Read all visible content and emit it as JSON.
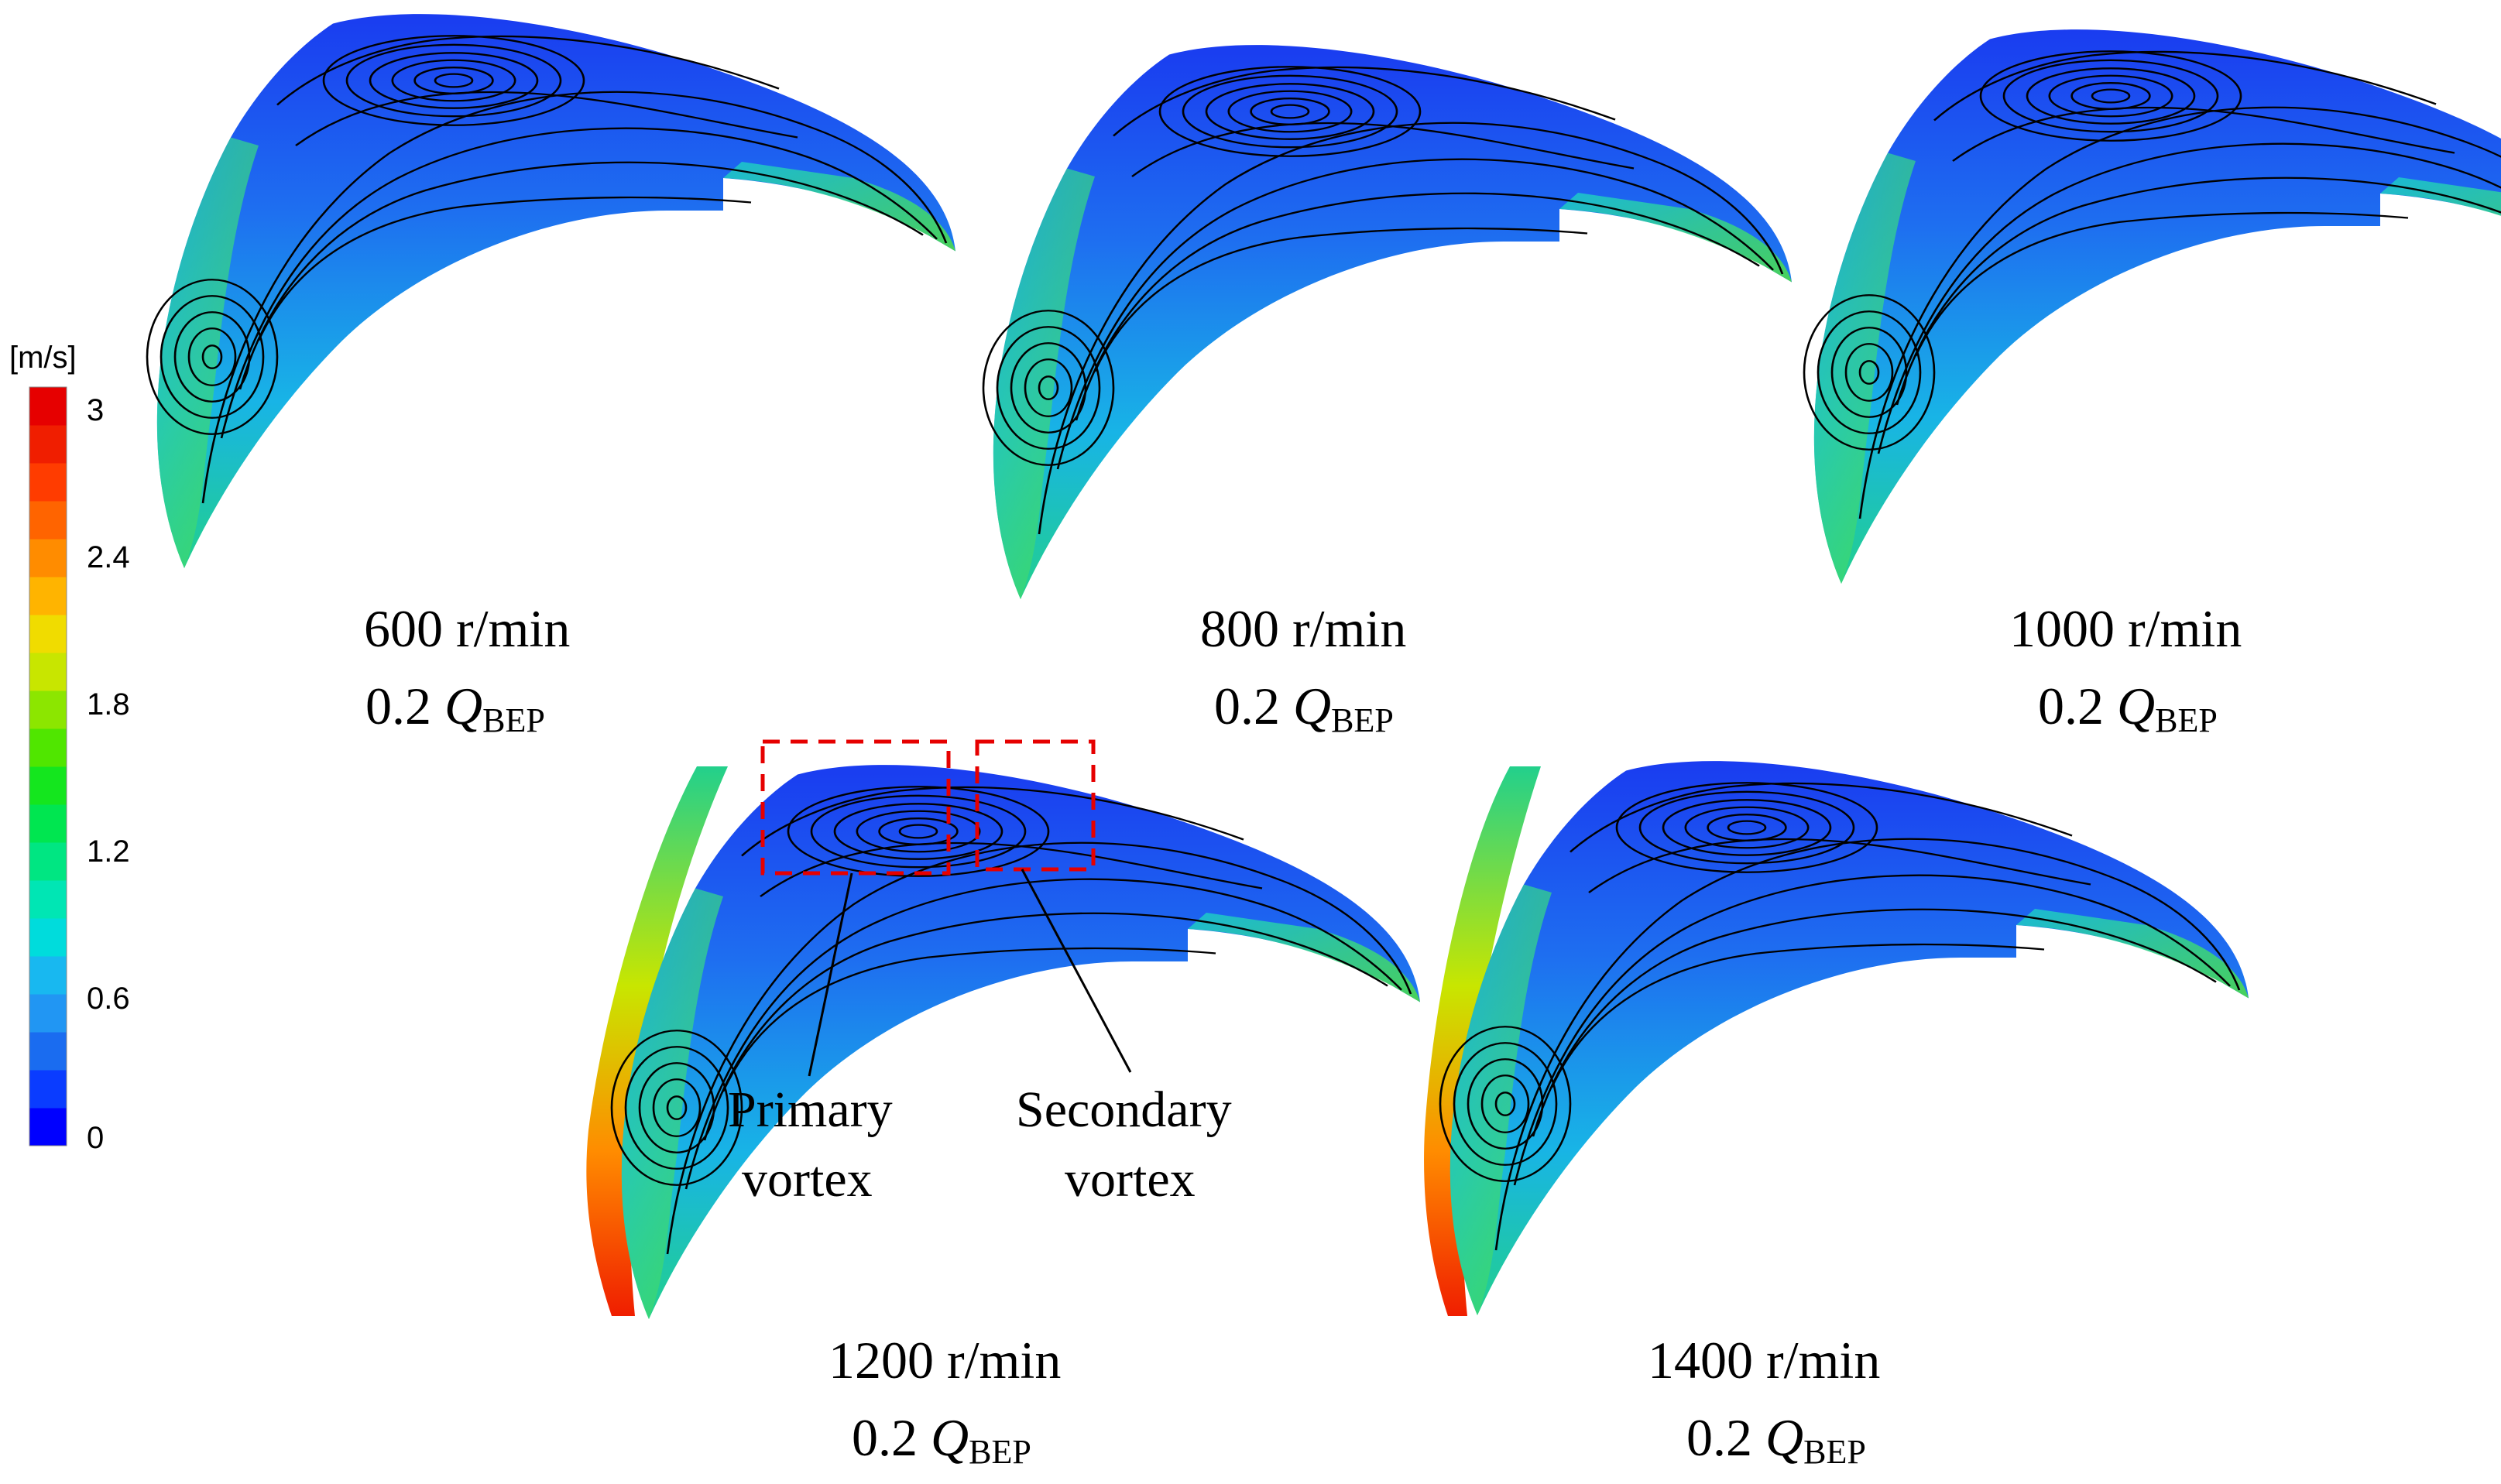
{
  "colorbar": {
    "unit": "[m/s]",
    "ticks": [
      "3",
      "2.4",
      "1.8",
      "1.2",
      "0.6",
      "0"
    ],
    "colors": [
      "#0000ff",
      "#0a3cff",
      "#1a6cf0",
      "#2196f3",
      "#18b8f0",
      "#00dcdc",
      "#00e6b4",
      "#00e682",
      "#00e650",
      "#14e61e",
      "#50e600",
      "#8ce600",
      "#c8e600",
      "#f0dc00",
      "#ffb400",
      "#ff8c00",
      "#ff6400",
      "#ff3c00",
      "#f01e00",
      "#e60000"
    ]
  },
  "panels": [
    {
      "speed": "600 r/min",
      "flow_coef": "0.2",
      "flow_var": "Q",
      "flow_sub": "BEP"
    },
    {
      "speed": "800 r/min",
      "flow_coef": "0.2",
      "flow_var": "Q",
      "flow_sub": "BEP"
    },
    {
      "speed": "1000 r/min",
      "flow_coef": "0.2",
      "flow_var": "Q",
      "flow_sub": "BEP"
    },
    {
      "speed": "1200 r/min",
      "flow_coef": "0.2",
      "flow_var": "Q",
      "flow_sub": "BEP"
    },
    {
      "speed": "1400 r/min",
      "flow_coef": "0.2",
      "flow_var": "Q",
      "flow_sub": "BEP"
    }
  ],
  "annotations": {
    "primary": [
      "Primary",
      "vortex"
    ],
    "secondary": [
      "Secondary",
      "vortex"
    ]
  }
}
